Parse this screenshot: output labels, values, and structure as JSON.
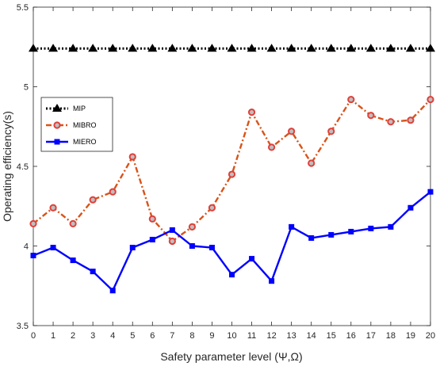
{
  "chart_data": {
    "type": "line",
    "xlabel": "Safety parameter level (Ψ,Ω)",
    "ylabel": "Operating efficiency(s)",
    "x": [
      0,
      1,
      2,
      3,
      4,
      5,
      6,
      7,
      8,
      9,
      10,
      11,
      12,
      13,
      14,
      15,
      16,
      17,
      18,
      19,
      20
    ],
    "xlim": [
      0,
      20
    ],
    "ylim": [
      3.5,
      5.5
    ],
    "xticks": [
      "0",
      "1",
      "2",
      "3",
      "4",
      "5",
      "6",
      "7",
      "8",
      "9",
      "10",
      "11",
      "12",
      "13",
      "14",
      "15",
      "16",
      "17",
      "18",
      "19",
      "20"
    ],
    "yticks": [
      "3.5",
      "4",
      "4.5",
      "5",
      "5.5"
    ],
    "grid": false,
    "legend_position": "left, upper-middle",
    "series": [
      {
        "name": "MIP",
        "color": "#000000",
        "line_style": "dotted",
        "marker": "triangle",
        "values": [
          5.24,
          5.24,
          5.24,
          5.24,
          5.24,
          5.24,
          5.24,
          5.24,
          5.24,
          5.24,
          5.24,
          5.24,
          5.24,
          5.24,
          5.24,
          5.24,
          5.24,
          5.24,
          5.24,
          5.24,
          5.24
        ]
      },
      {
        "name": "MIBRO",
        "color": "#d95319",
        "marker_edge": "#e0403a",
        "marker_fill": "#bfbfbf",
        "line_style": "dashdot",
        "marker": "circle",
        "values": [
          4.14,
          4.24,
          4.14,
          4.29,
          4.34,
          4.56,
          4.17,
          4.03,
          4.12,
          4.24,
          4.45,
          4.84,
          4.62,
          4.72,
          4.52,
          4.72,
          4.92,
          4.82,
          4.78,
          4.79,
          4.92
        ]
      },
      {
        "name": "MIERO",
        "color": "#0000ff",
        "line_style": "solid",
        "marker": "square",
        "values": [
          3.94,
          3.99,
          3.91,
          3.84,
          3.72,
          3.99,
          4.04,
          4.1,
          4.0,
          3.99,
          3.82,
          3.92,
          3.78,
          4.12,
          4.05,
          4.07,
          4.09,
          4.11,
          4.12,
          4.24,
          4.34
        ]
      }
    ]
  }
}
